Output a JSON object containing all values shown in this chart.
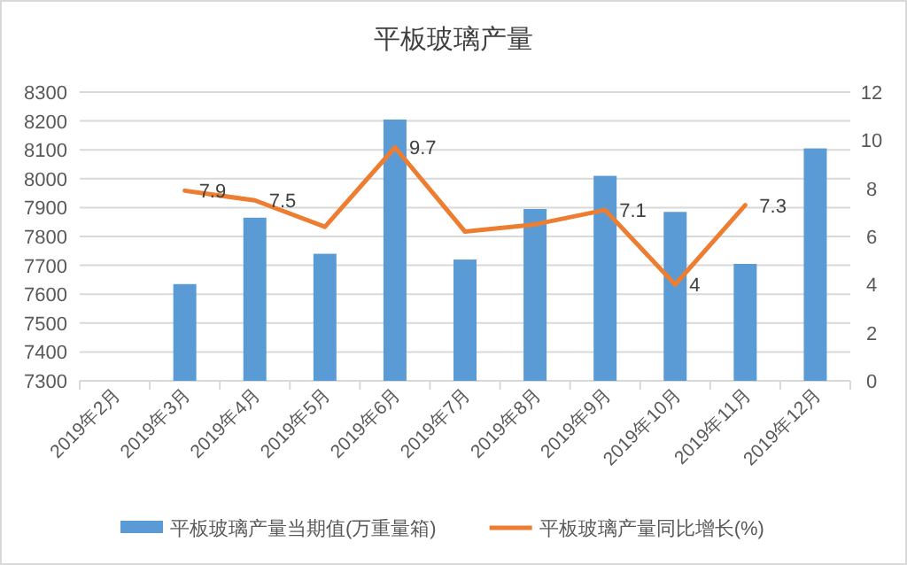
{
  "chart_data": {
    "type": "bar",
    "title": "平板玻璃产量",
    "categories": [
      "2019年2月",
      "2019年3月",
      "2019年4月",
      "2019年5月",
      "2019年6月",
      "2019年7月",
      "2019年8月",
      "2019年9月",
      "2019年10月",
      "2019年11月",
      "2019年12月"
    ],
    "series": [
      {
        "name": "平板玻璃产量当期值(万重量箱)",
        "color": "#5b9bd5",
        "values": [
          null,
          7635,
          7865,
          7740,
          8205,
          7720,
          7895,
          8010,
          7885,
          7705,
          8105
        ]
      },
      {
        "name": "平板玻璃产量同比增长(%)",
        "type": "line",
        "axis": "y2",
        "color": "#ed7d31",
        "values": [
          null,
          7.9,
          7.5,
          6.4,
          9.7,
          6.2,
          6.5,
          7.1,
          4,
          7.3,
          null
        ],
        "value_labels": [
          null,
          "7.9",
          "7.5",
          null,
          "9.7",
          null,
          null,
          "7.1",
          "4",
          "7.3",
          null
        ]
      }
    ],
    "ylim": [
      7300,
      8300
    ],
    "yticks": [
      7300,
      7400,
      7500,
      7600,
      7700,
      7800,
      7900,
      8000,
      8100,
      8200,
      8300
    ],
    "y2lim": [
      0,
      12
    ],
    "y2ticks": [
      0,
      2,
      4,
      6,
      8,
      10,
      12
    ],
    "grid": "y",
    "legend": "bottom"
  }
}
